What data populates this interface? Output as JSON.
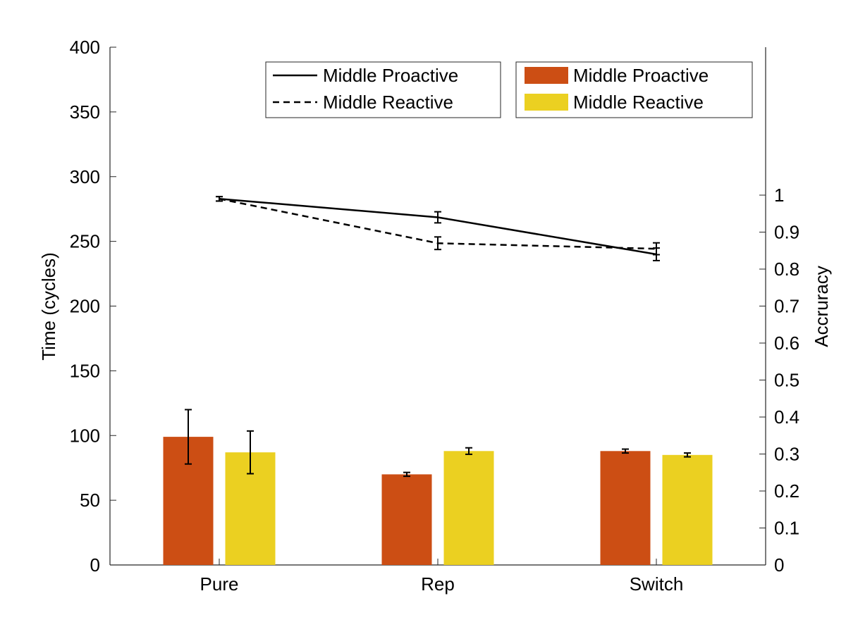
{
  "chart_data": {
    "type": "bar",
    "categories": [
      "Pure",
      "Rep",
      "Switch"
    ],
    "left_axis": {
      "label": "Time (cycles)",
      "ylim": [
        0,
        400
      ],
      "ticks": [
        0,
        50,
        100,
        150,
        200,
        250,
        300,
        350,
        400
      ]
    },
    "right_axis": {
      "label": "Accruracy",
      "ylim": [
        0,
        1.4
      ],
      "ticks": [
        0,
        0.1,
        0.2,
        0.3,
        0.4,
        0.5,
        0.6,
        0.7,
        0.8,
        0.9,
        1
      ],
      "tick_labels": [
        "0",
        "0.1",
        "0.2",
        "0.3",
        "0.4",
        "0.5",
        "0.6",
        "0.7",
        "0.8",
        "0.9",
        "1"
      ]
    },
    "bar_series": [
      {
        "name": "Middle Proactive",
        "color": "#CC4E14",
        "values": [
          99,
          70,
          88
        ],
        "errors": [
          21,
          1.5,
          1.5
        ]
      },
      {
        "name": "Middle Reactive",
        "color": "#EBD021",
        "values": [
          87,
          88,
          85
        ],
        "errors": [
          16.5,
          2.5,
          1.5
        ]
      }
    ],
    "line_series": [
      {
        "name": "Middle Proactive",
        "style": "solid",
        "color": "#000000",
        "values": [
          0.99,
          0.94,
          0.84
        ],
        "errors": [
          0.006,
          0.015,
          0.017
        ]
      },
      {
        "name": "Middle Reactive",
        "style": "dashed",
        "color": "#000000",
        "values": [
          0.99,
          0.87,
          0.855
        ],
        "errors": [
          0.006,
          0.017,
          0.016
        ]
      }
    ],
    "legends": [
      "top-center (lines)",
      "top-right (bars)"
    ],
    "grid": false
  }
}
